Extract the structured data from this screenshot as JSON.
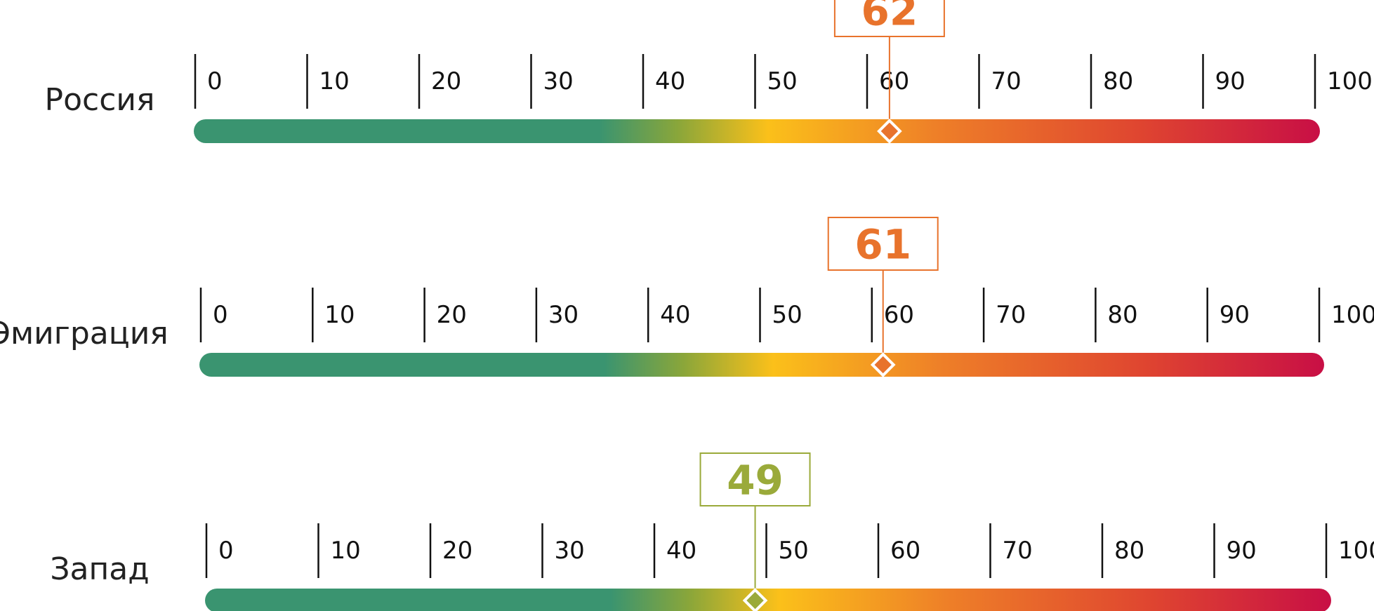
{
  "chart_data": {
    "type": "gauge",
    "scale": {
      "min": 0,
      "max": 100,
      "ticks": [
        0,
        10,
        20,
        30,
        40,
        50,
        60,
        70,
        80,
        90,
        100
      ]
    },
    "gradient_stops": [
      {
        "value": 0,
        "color": "#3a9470"
      },
      {
        "value": 36,
        "color": "#3a9470"
      },
      {
        "value": 43,
        "color": "#8aa63a"
      },
      {
        "value": 51,
        "color": "#fbc01a"
      },
      {
        "value": 66,
        "color": "#ee7f28"
      },
      {
        "value": 84,
        "color": "#df4530"
      },
      {
        "value": 100,
        "color": "#c80f45"
      }
    ],
    "rows": [
      {
        "label": "Россия",
        "value": 62,
        "color": "#e8732c"
      },
      {
        "label": "Эмиграция",
        "value": 61,
        "color": "#e8732c"
      },
      {
        "label": "Запад",
        "value": 49,
        "color": "#9aaa3a"
      }
    ]
  }
}
